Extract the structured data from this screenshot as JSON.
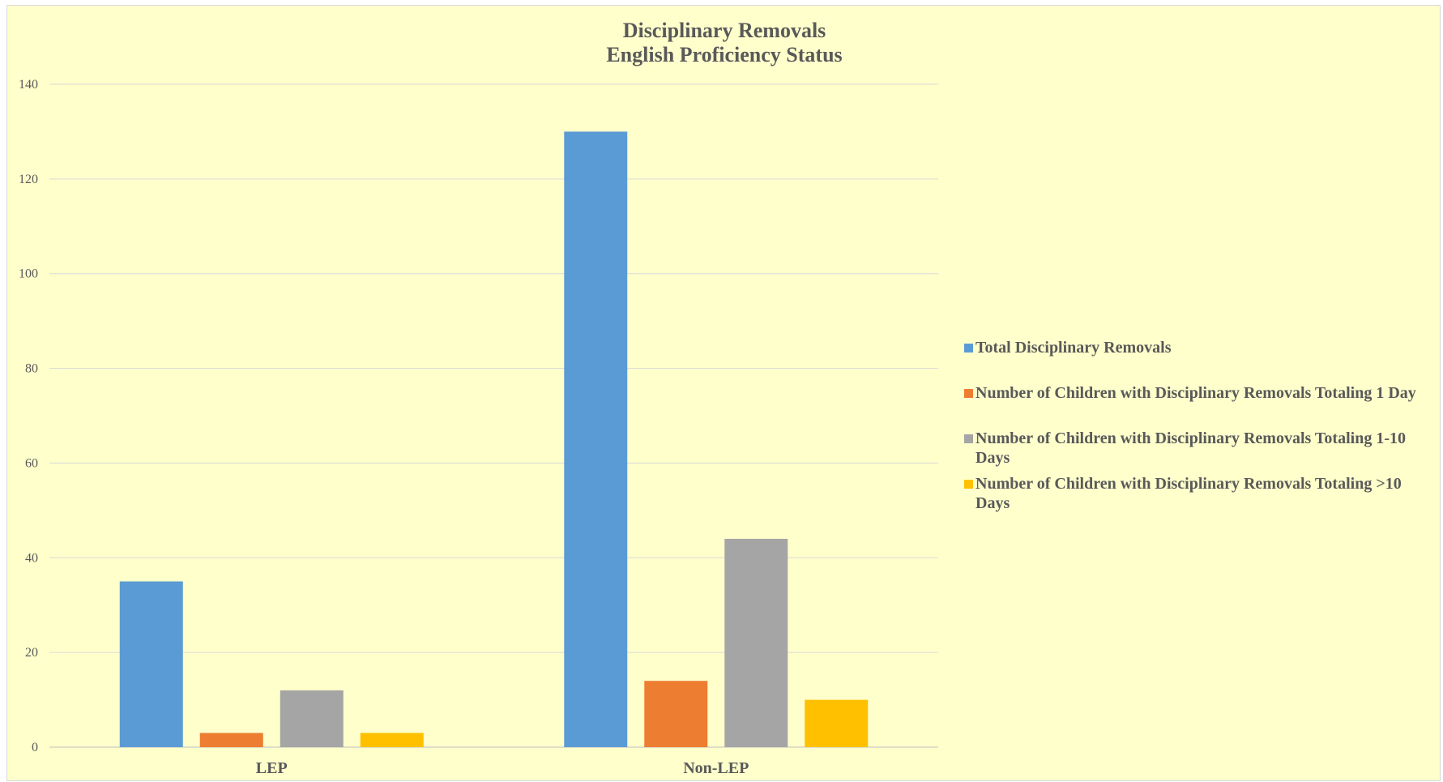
{
  "chart_data": {
    "type": "bar",
    "title_lines": [
      "Disciplinary Removals",
      "English Proficiency Status"
    ],
    "categories": [
      "LEP",
      "Non-LEP"
    ],
    "series": [
      {
        "name": "Total Disciplinary Removals",
        "color": "#5b9bd5",
        "values": [
          35,
          130
        ]
      },
      {
        "name": "Number of Children with Disciplinary Removals Totaling 1 Day",
        "color": "#ed7d31",
        "values": [
          3,
          14
        ]
      },
      {
        "name": "Number of Children with Disciplinary Removals Totaling 1-10 Days",
        "color": "#a5a5a5",
        "values": [
          12,
          44
        ]
      },
      {
        "name": "Number of Children with Disciplinary Removals Totaling >10 Days",
        "color": "#ffc000",
        "values": [
          3,
          10
        ]
      }
    ],
    "ylim": [
      0,
      140
    ],
    "yticks": [
      0,
      20,
      40,
      60,
      80,
      100,
      120,
      140
    ],
    "xlabel": "",
    "ylabel": "",
    "grid": true,
    "legend_position": "right"
  }
}
